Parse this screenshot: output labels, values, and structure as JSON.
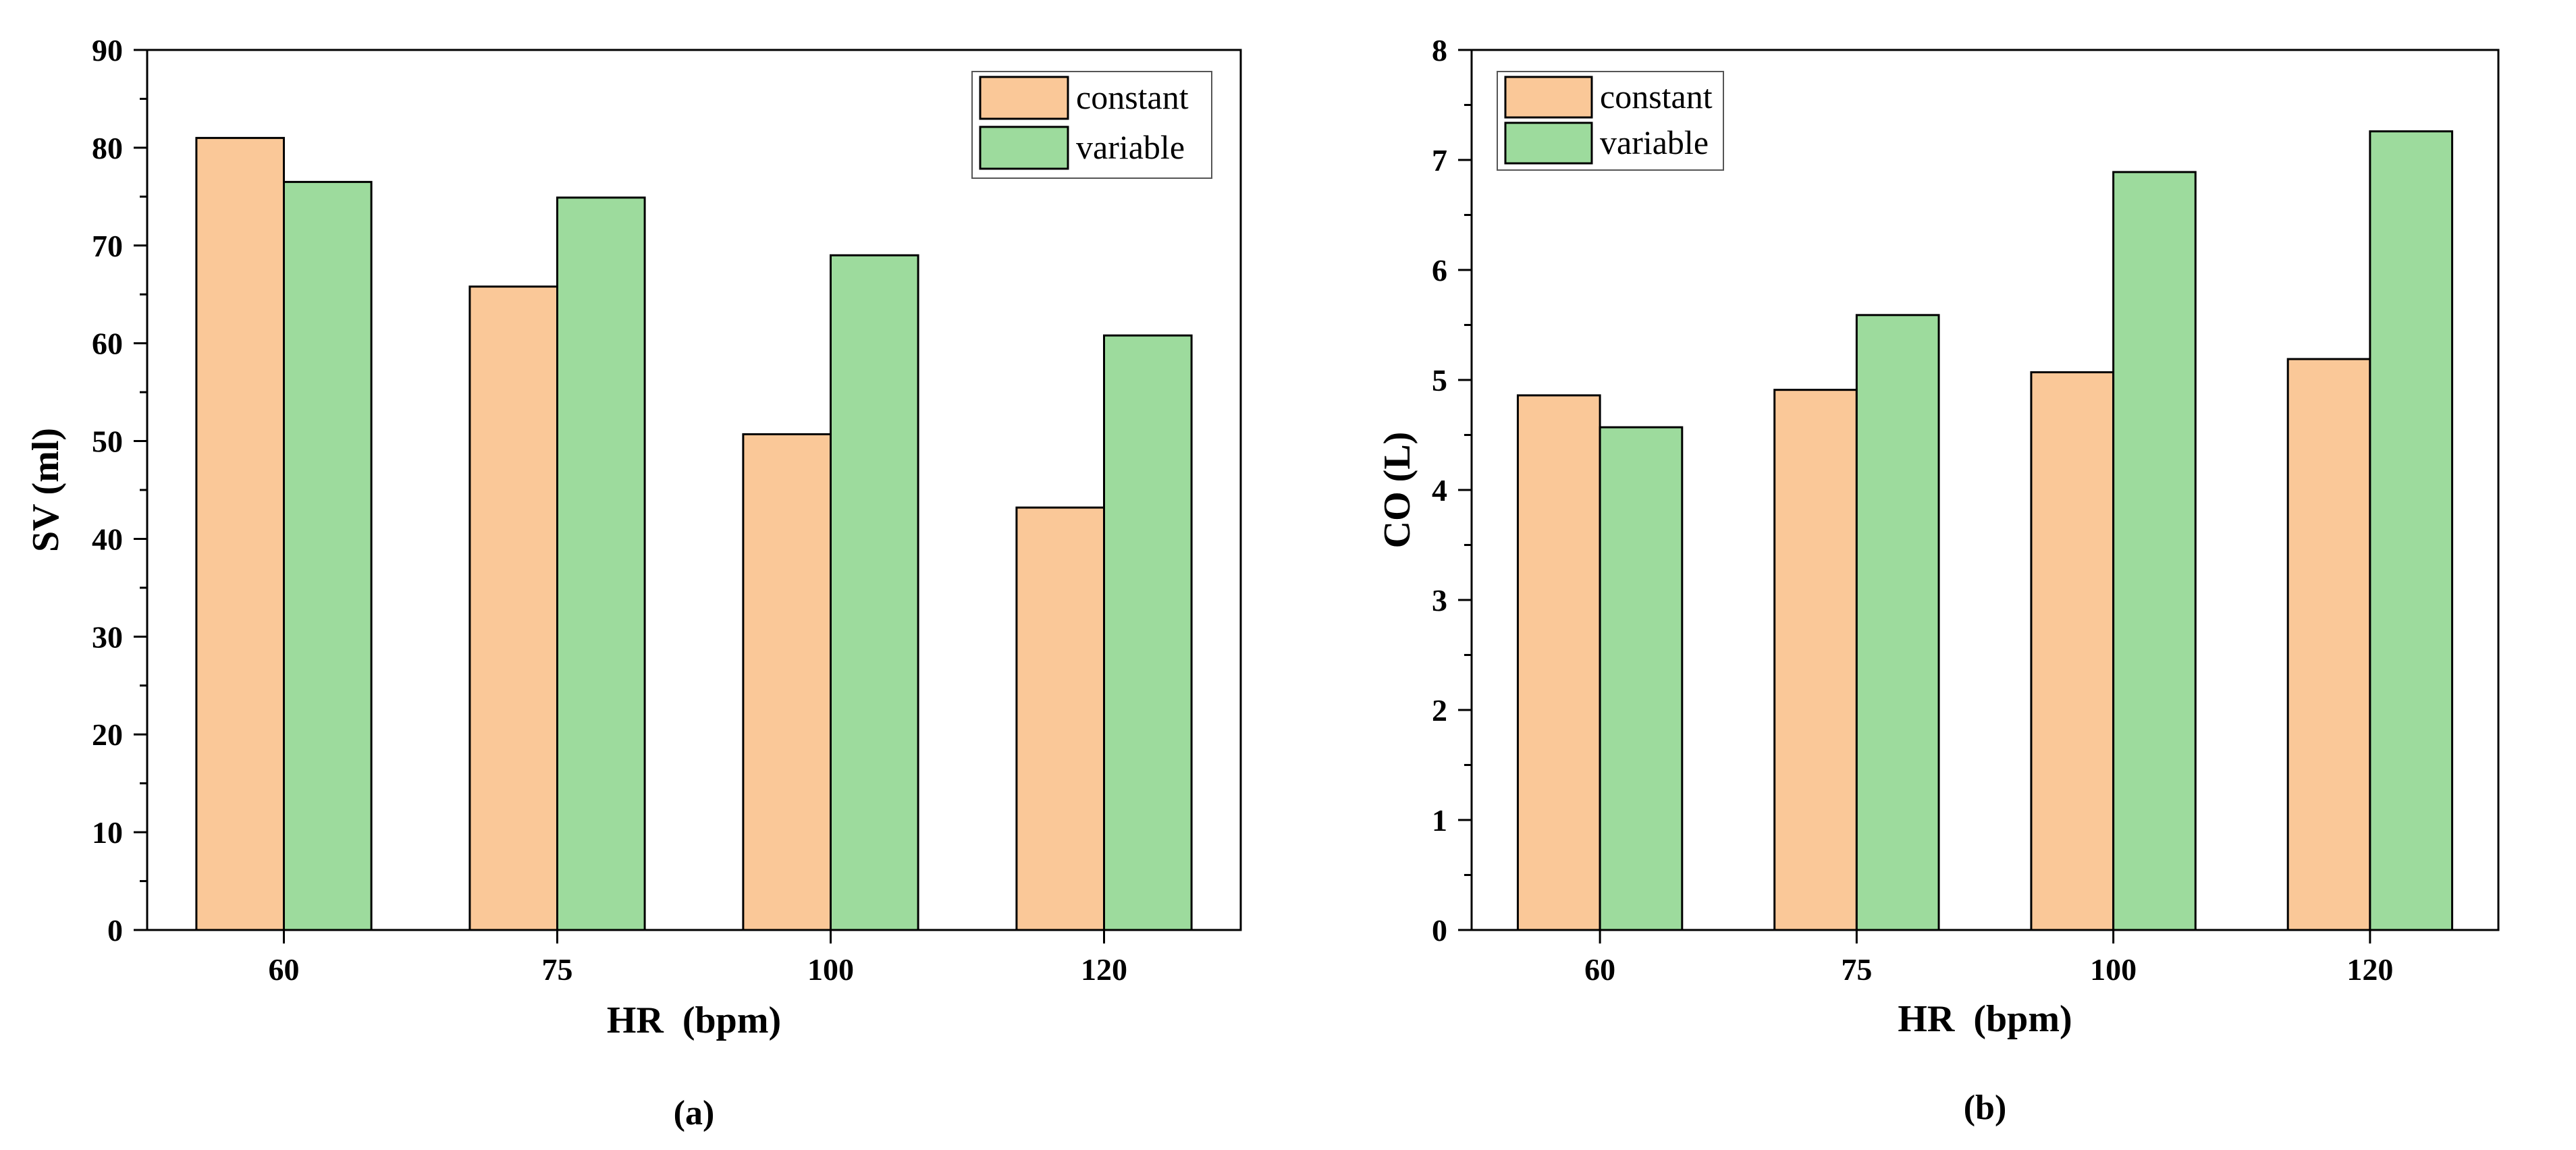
{
  "chart_data": [
    {
      "type": "bar",
      "panel_label": "(a)",
      "xlabel": "HR  (bpm)",
      "ylabel": "SV (ml)",
      "categories": [
        "60",
        "75",
        "100",
        "120"
      ],
      "ylim": [
        0,
        90
      ],
      "yticks": [
        "0",
        "10",
        "20",
        "30",
        "40",
        "50",
        "60",
        "70",
        "80",
        "90"
      ],
      "legend_position": "top-right",
      "series": [
        {
          "name": "constant",
          "color": "#FAC898",
          "values": [
            81.0,
            65.8,
            50.7,
            43.2
          ]
        },
        {
          "name": "variable",
          "color": "#9DDB9D",
          "values": [
            76.5,
            74.9,
            69.0,
            60.8
          ]
        }
      ]
    },
    {
      "type": "bar",
      "panel_label": "(b)",
      "xlabel": "HR  (bpm)",
      "ylabel": "CO (L)",
      "categories": [
        "60",
        "75",
        "100",
        "120"
      ],
      "ylim": [
        0,
        8
      ],
      "yticks": [
        "0",
        "1",
        "2",
        "3",
        "4",
        "5",
        "6",
        "7",
        "8"
      ],
      "legend_position": "top-left",
      "series": [
        {
          "name": "constant",
          "color": "#FAC898",
          "values": [
            4.86,
            4.91,
            5.07,
            5.19
          ]
        },
        {
          "name": "variable",
          "color": "#9DDB9D",
          "values": [
            4.57,
            5.59,
            6.89,
            7.26
          ]
        }
      ]
    }
  ]
}
